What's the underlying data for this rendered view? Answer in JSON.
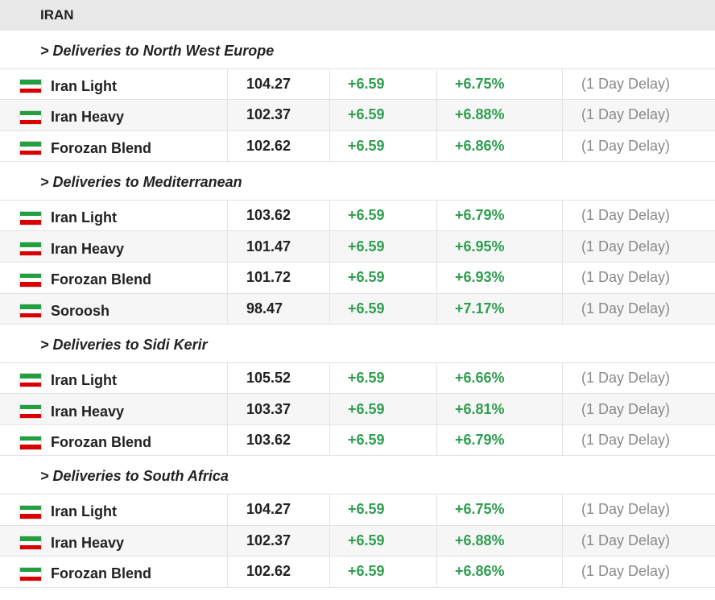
{
  "header": {
    "title": "IRAN"
  },
  "sections": [
    {
      "title": "> Deliveries to North West Europe",
      "rows": [
        [
          "Iran Light",
          "104.27",
          "+6.59",
          "+6.75%",
          "(1 Day Delay)"
        ],
        [
          "Iran Heavy",
          "102.37",
          "+6.59",
          "+6.88%",
          "(1 Day Delay)"
        ],
        [
          "Forozan Blend",
          "102.62",
          "+6.59",
          "+6.86%",
          "(1 Day Delay)"
        ]
      ]
    },
    {
      "title": "> Deliveries to Mediterranean",
      "rows": [
        [
          "Iran Light",
          "103.62",
          "+6.59",
          "+6.79%",
          "(1 Day Delay)"
        ],
        [
          "Iran Heavy",
          "101.47",
          "+6.59",
          "+6.95%",
          "(1 Day Delay)"
        ],
        [
          "Forozan Blend",
          "101.72",
          "+6.59",
          "+6.93%",
          "(1 Day Delay)"
        ],
        [
          "Soroosh",
          "98.47",
          "+6.59",
          "+7.17%",
          "(1 Day Delay)"
        ]
      ]
    },
    {
      "title": "> Deliveries to Sidi Kerir",
      "rows": [
        [
          "Iran Light",
          "105.52",
          "+6.59",
          "+6.66%",
          "(1 Day Delay)"
        ],
        [
          "Iran Heavy",
          "103.37",
          "+6.59",
          "+6.81%",
          "(1 Day Delay)"
        ],
        [
          "Forozan Blend",
          "103.62",
          "+6.59",
          "+6.79%",
          "(1 Day Delay)"
        ]
      ]
    },
    {
      "title": "> Deliveries to South Africa",
      "rows": [
        [
          "Iran Light",
          "104.27",
          "+6.59",
          "+6.75%",
          "(1 Day Delay)"
        ],
        [
          "Iran Heavy",
          "102.37",
          "+6.59",
          "+6.88%",
          "(1 Day Delay)"
        ],
        [
          "Forozan Blend",
          "102.62",
          "+6.59",
          "+6.86%",
          "(1 Day Delay)"
        ]
      ]
    }
  ]
}
